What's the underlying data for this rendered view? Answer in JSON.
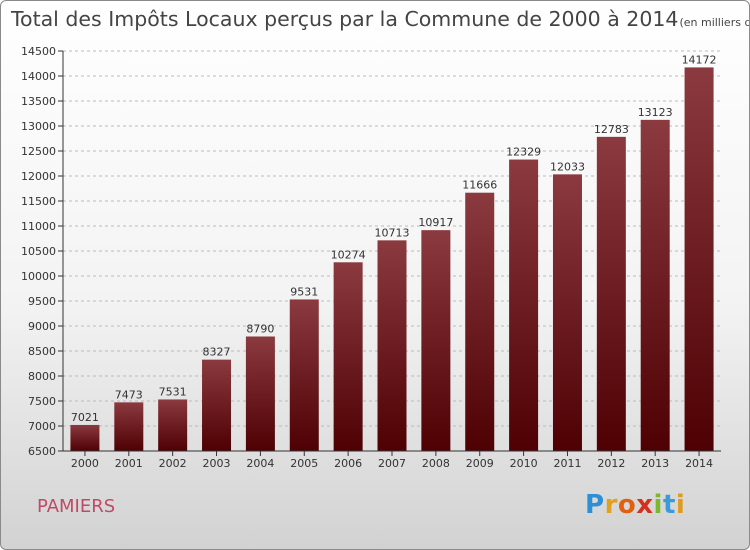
{
  "title": "Total des Impôts Locaux perçus par la Commune de 2000 à 2014",
  "subtitle": "(en milliers d'€)",
  "commune": "PAMIERS",
  "brand": {
    "letters": [
      "P",
      "r",
      "o",
      "x",
      "i",
      "t",
      "i"
    ],
    "colors": [
      "#2d8fd5",
      "#e0a020",
      "#e06010",
      "#d43020",
      "#7bb82e",
      "#3a9bd8",
      "#e39a1c"
    ]
  },
  "colors": {
    "bar_top": "#8b3a3f",
    "bar_bottom": "#4e0003",
    "axis": "#333333",
    "grid": "#bbbbbb"
  },
  "chart_data": {
    "type": "bar",
    "title": "Total des Impôts Locaux perçus par la Commune de 2000 à 2014",
    "subtitle": "(en milliers d'€)",
    "xlabel": "",
    "ylabel": "",
    "categories": [
      "2000",
      "2001",
      "2002",
      "2003",
      "2004",
      "2005",
      "2006",
      "2007",
      "2008",
      "2009",
      "2010",
      "2011",
      "2012",
      "2013",
      "2014"
    ],
    "values": [
      7021,
      7473,
      7531,
      8327,
      8790,
      9531,
      10274,
      10713,
      10917,
      11666,
      12329,
      12033,
      12783,
      13123,
      14172
    ],
    "ylim": [
      6500,
      14500
    ],
    "yticks": [
      6500,
      7000,
      7500,
      8000,
      8500,
      9000,
      9500,
      10000,
      10500,
      11000,
      11500,
      12000,
      12500,
      13000,
      13500,
      14000,
      14500
    ],
    "grid": "horizontal dashed"
  }
}
